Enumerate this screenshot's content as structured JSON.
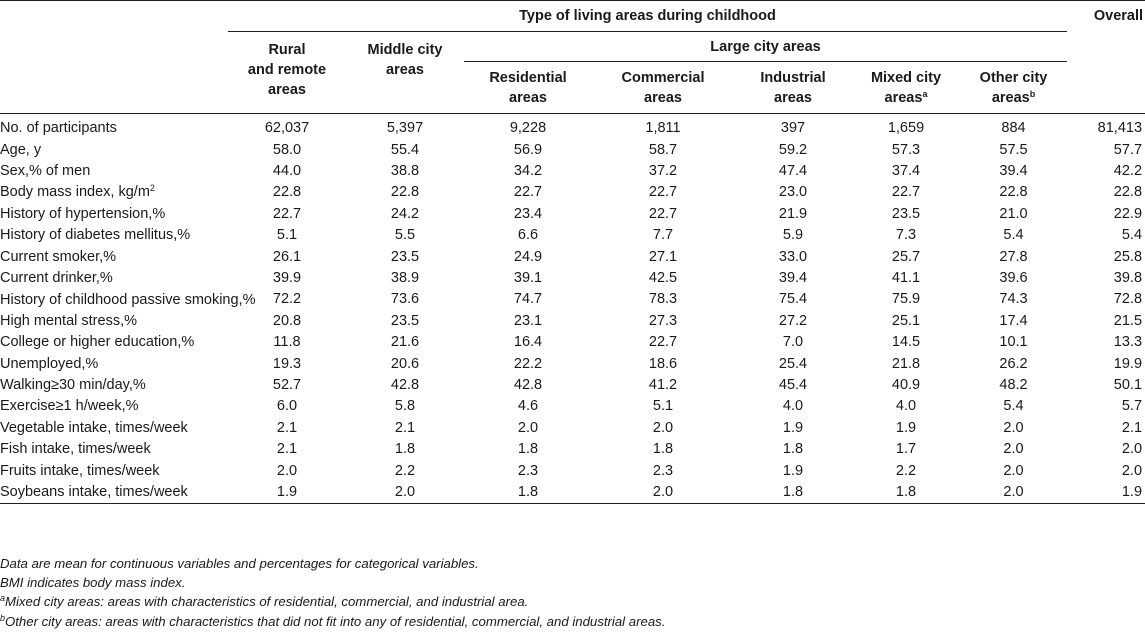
{
  "header": {
    "group_title": "Type of living areas during childhood",
    "overall": "Overall",
    "large_city": "Large city areas",
    "columns": [
      {
        "line1": "Rural",
        "line2": "and remote",
        "line3": "areas",
        "sup": ""
      },
      {
        "line1": "Middle city",
        "line2": "areas",
        "line3": "",
        "sup": ""
      },
      {
        "line1": "Residential",
        "line2": "areas",
        "line3": "",
        "sup": ""
      },
      {
        "line1": "Commercial",
        "line2": "areas",
        "line3": "",
        "sup": ""
      },
      {
        "line1": "Industrial",
        "line2": "areas",
        "line3": "",
        "sup": ""
      },
      {
        "line1": "Mixed city",
        "line2": "areas",
        "line3": "",
        "sup": "a"
      },
      {
        "line1": "Other city",
        "line2": "areas",
        "line3": "",
        "sup": "b"
      }
    ]
  },
  "rows": [
    {
      "label": "No. of participants",
      "sup": "",
      "values": [
        "62,037",
        "5,397",
        "9,228",
        "1,811",
        "397",
        "1,659",
        "884",
        "81,413"
      ]
    },
    {
      "label": "Age, y",
      "sup": "",
      "values": [
        "58.0",
        "55.4",
        "56.9",
        "58.7",
        "59.2",
        "57.3",
        "57.5",
        "57.7"
      ]
    },
    {
      "label": "Sex,% of men",
      "sup": "",
      "values": [
        "44.0",
        "38.8",
        "34.2",
        "37.2",
        "47.4",
        "37.4",
        "39.4",
        "42.2"
      ]
    },
    {
      "label": "Body mass index, kg/m",
      "sup": "2",
      "values": [
        "22.8",
        "22.8",
        "22.7",
        "22.7",
        "23.0",
        "22.7",
        "22.8",
        "22.8"
      ]
    },
    {
      "label": "History of hypertension,%",
      "sup": "",
      "values": [
        "22.7",
        "24.2",
        "23.4",
        "22.7",
        "21.9",
        "23.5",
        "21.0",
        "22.9"
      ]
    },
    {
      "label": "History of diabetes mellitus,%",
      "sup": "",
      "values": [
        "5.1",
        "5.5",
        "6.6",
        "7.7",
        "5.9",
        "7.3",
        "5.4",
        "5.4"
      ]
    },
    {
      "label": "Current smoker,%",
      "sup": "",
      "values": [
        "26.1",
        "23.5",
        "24.9",
        "27.1",
        "33.0",
        "25.7",
        "27.8",
        "25.8"
      ]
    },
    {
      "label": "Current drinker,%",
      "sup": "",
      "values": [
        "39.9",
        "38.9",
        "39.1",
        "42.5",
        "39.4",
        "41.1",
        "39.6",
        "39.8"
      ]
    },
    {
      "label": "History of childhood passive smoking,%",
      "sup": "",
      "values": [
        "72.2",
        "73.6",
        "74.7",
        "78.3",
        "75.4",
        "75.9",
        "74.3",
        "72.8"
      ],
      "wrap": true
    },
    {
      "label": "High mental stress,%",
      "sup": "",
      "values": [
        "20.8",
        "23.5",
        "23.1",
        "27.3",
        "27.2",
        "25.1",
        "17.4",
        "21.5"
      ]
    },
    {
      "label": "College or higher education,%",
      "sup": "",
      "values": [
        "11.8",
        "21.6",
        "16.4",
        "22.7",
        "7.0",
        "14.5",
        "10.1",
        "13.3"
      ]
    },
    {
      "label": "Unemployed,%",
      "sup": "",
      "values": [
        "19.3",
        "20.6",
        "22.2",
        "18.6",
        "25.4",
        "21.8",
        "26.2",
        "19.9"
      ]
    },
    {
      "label": "Walking≥30 min/day,%",
      "sup": "",
      "values": [
        "52.7",
        "42.8",
        "42.8",
        "41.2",
        "45.4",
        "40.9",
        "48.2",
        "50.1"
      ]
    },
    {
      "label": "Exercise≥1 h/week,%",
      "sup": "",
      "values": [
        "6.0",
        "5.8",
        "4.6",
        "5.1",
        "4.0",
        "4.0",
        "5.4",
        "5.7"
      ]
    },
    {
      "label": "Vegetable intake, times/week",
      "sup": "",
      "values": [
        "2.1",
        "2.1",
        "2.0",
        "2.0",
        "1.9",
        "1.9",
        "2.0",
        "2.1"
      ]
    },
    {
      "label": "Fish intake, times/week",
      "sup": "",
      "values": [
        "2.1",
        "1.8",
        "1.8",
        "1.8",
        "1.8",
        "1.7",
        "2.0",
        "2.0"
      ]
    },
    {
      "label": "Fruits intake, times/week",
      "sup": "",
      "values": [
        "2.0",
        "2.2",
        "2.3",
        "2.3",
        "1.9",
        "2.2",
        "2.0",
        "2.0"
      ]
    },
    {
      "label": "Soybeans intake, times/week",
      "sup": "",
      "values": [
        "1.9",
        "2.0",
        "1.8",
        "2.0",
        "1.8",
        "1.8",
        "2.0",
        "1.9"
      ]
    }
  ],
  "notes": {
    "line1": "Data are mean for continuous variables and percentages for categorical variables.",
    "line2": "BMI indicates body mass index.",
    "line3_sup": "a",
    "line3": "Mixed city areas: areas with characteristics of residential, commercial, and industrial area.",
    "line4_sup": "b",
    "line4": "Other city areas: areas with characteristics that did not fit into any of residential, commercial, and industrial areas."
  }
}
